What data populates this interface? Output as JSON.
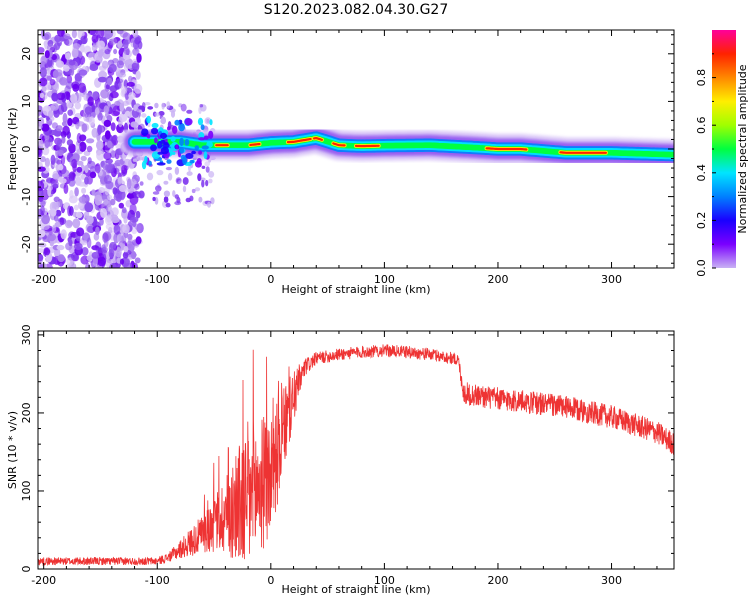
{
  "title": "S120.2023.082.04.30.G27",
  "chart_data": [
    {
      "type": "heatmap",
      "xlabel": "Height of straight line (km)",
      "ylabel": "Frequency (Hz)",
      "xlim": [
        -205,
        355
      ],
      "ylim": [
        -25,
        25
      ],
      "xticks": [
        -200,
        -100,
        0,
        100,
        200,
        300
      ],
      "yticks": [
        -20,
        -10,
        0,
        10,
        20
      ],
      "colorbar": {
        "label": "Normalized spectral amplitude",
        "range": [
          0,
          1
        ],
        "ticks": [
          0.0,
          0.2,
          0.4,
          0.6,
          0.8
        ],
        "colormap": "hsv-rainbow (purple → blue → cyan → green → yellow → red → magenta)"
      },
      "ridge_frequency_hz": {
        "x": [
          -120,
          -100,
          -80,
          -60,
          -40,
          -20,
          0,
          20,
          40,
          60,
          80,
          100,
          140,
          180,
          200,
          220,
          260,
          300,
          355
        ],
        "y": [
          1.5,
          1.5,
          1.5,
          0.8,
          0.8,
          0.8,
          1.3,
          1.5,
          2.3,
          0.8,
          0.6,
          0.7,
          0.8,
          0.3,
          0,
          0,
          -0.8,
          -0.8,
          -1.2
        ]
      },
      "noise_region_x": [
        -205,
        -115
      ]
    },
    {
      "type": "line",
      "xlabel": "Height of straight line (km)",
      "ylabel": "SNR (10 * v/v)",
      "xlim": [
        -205,
        355
      ],
      "ylim": [
        0,
        305
      ],
      "xticks": [
        -200,
        -100,
        0,
        100,
        200,
        300
      ],
      "yticks": [
        0,
        100,
        200,
        300
      ],
      "color": "#ee3333",
      "envelope": {
        "x": [
          -205,
          -100,
          -90,
          -80,
          -60,
          -40,
          -20,
          0,
          20,
          30,
          40,
          60,
          80,
          100,
          120,
          140,
          160,
          165,
          170,
          200,
          250,
          300,
          340,
          355
        ],
        "mean": [
          10,
          10,
          15,
          25,
          45,
          70,
          90,
          120,
          220,
          258,
          270,
          275,
          278,
          280,
          278,
          275,
          270,
          268,
          225,
          218,
          210,
          195,
          175,
          160
        ],
        "spread": [
          5,
          5,
          6,
          12,
          25,
          50,
          100,
          80,
          35,
          12,
          8,
          8,
          8,
          8,
          8,
          8,
          8,
          8,
          15,
          15,
          15,
          15,
          15,
          15
        ]
      }
    }
  ]
}
